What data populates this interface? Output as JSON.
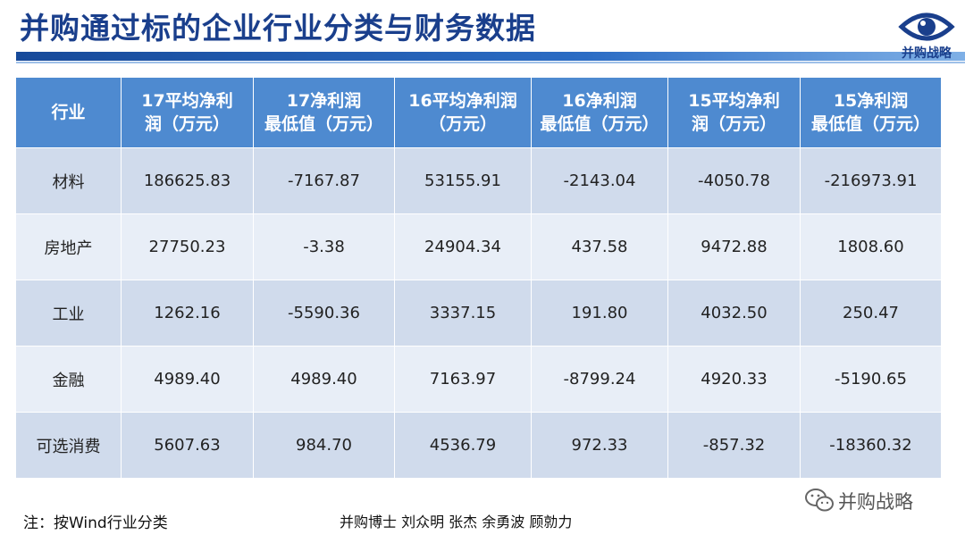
{
  "slide": {
    "title": "并购通过标的企业行业分类与财务数据",
    "logo_text": "并购战略",
    "note": "注：按Wind行业分类",
    "authors": "并购博士 刘众明 张杰 余勇波 顾勍力",
    "watermark": "并购战略"
  },
  "table": {
    "headers": [
      [
        "行业"
      ],
      [
        "17平均净利",
        "润（万元）"
      ],
      [
        "17净利润",
        "最低值（万元）"
      ],
      [
        "16平均净利润",
        "（万元）"
      ],
      [
        "16净利润",
        "最低值（万元）"
      ],
      [
        "15平均净利",
        "润（万元）"
      ],
      [
        "15净利润",
        "最低值（万元）"
      ]
    ],
    "rows": [
      [
        "材料",
        "186625.83",
        "-7167.87",
        "53155.91",
        "-2143.04",
        "-4050.78",
        "-216973.91"
      ],
      [
        "房地产",
        "27750.23",
        "-3.38",
        "24904.34",
        "437.58",
        "9472.88",
        "1808.60"
      ],
      [
        "工业",
        "1262.16",
        "-5590.36",
        "3337.15",
        "191.80",
        "4032.50",
        "250.47"
      ],
      [
        "金融",
        "4989.40",
        "4989.40",
        "7163.97",
        "-8799.24",
        "4920.33",
        "-5190.65"
      ],
      [
        "可选消费",
        "5607.63",
        "984.70",
        "4536.79",
        "972.33",
        "-857.32",
        "-18360.32"
      ]
    ]
  },
  "colors": {
    "title": "#1a3f8c",
    "header_bg": "#4e8ad0",
    "row_dark": "#d0dbec",
    "row_light": "#e8eef7"
  }
}
